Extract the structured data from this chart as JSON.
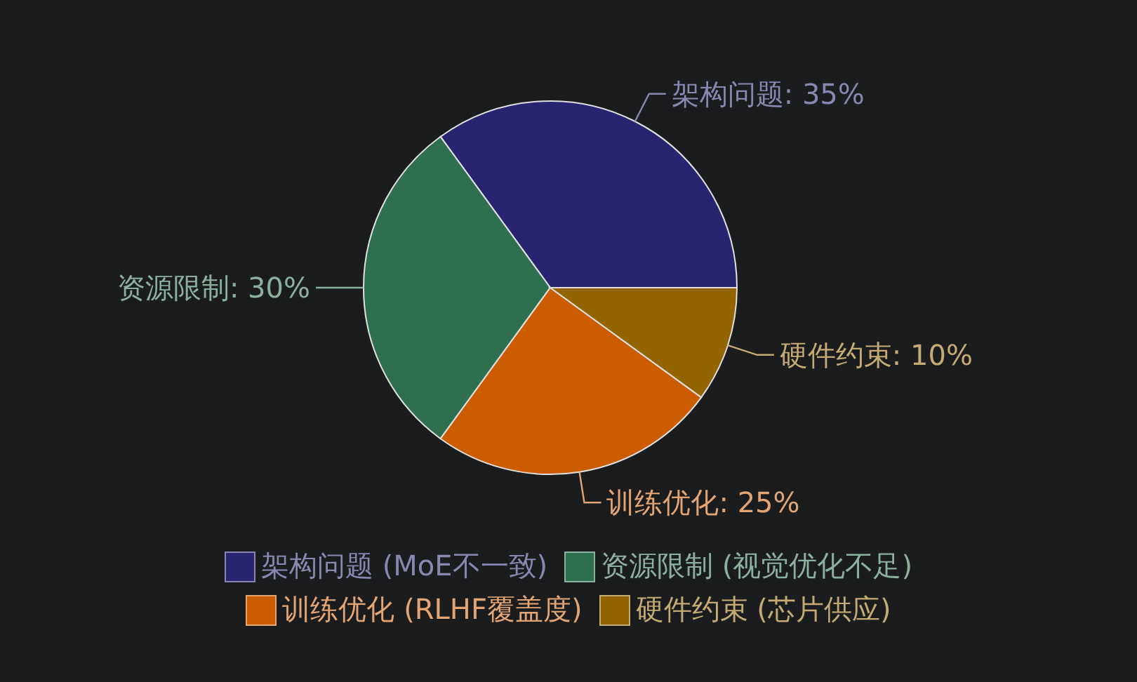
{
  "chart_data": {
    "type": "pie",
    "categories": [
      "架构问题 (MoE不一致)",
      "资源限制 (视觉优化不足)",
      "训练优化 (RLHF覆盖度)",
      "硬件约束 (芯片供应)"
    ],
    "values": [
      35,
      30,
      25,
      10
    ],
    "colors": [
      "#29246f",
      "#2e6f4f",
      "#cc5c00",
      "#946400"
    ],
    "value_labels": [
      "架构问题: 35%",
      "资源限制: 30%",
      "训练优化: 25%",
      "硬件约束: 10%"
    ],
    "legend": "bottom"
  }
}
